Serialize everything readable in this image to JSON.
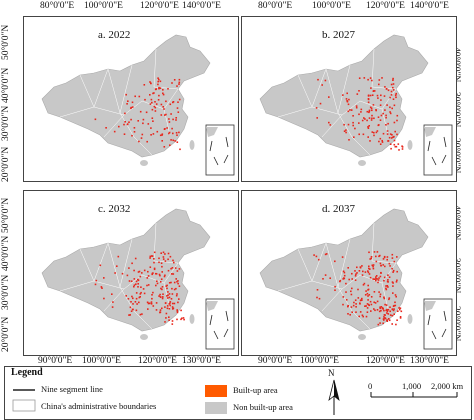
{
  "lon_top": [
    "80°0'0\"E",
    "100°0'0\"E",
    "120°0'0\"E",
    "140°0'0\"E"
  ],
  "lon_bottom_left": [
    "90°0'0\"E",
    "100°0'0\"E",
    "120°0'0\"E",
    "130°0'0\"E"
  ],
  "lon_bottom_right": [
    "90°0'0\"E",
    "100°0'0\"E",
    "120°0'0\"E",
    "130°0'0\"E"
  ],
  "lat_left_top": [
    "50°0'0\"N",
    "40°0'0\"N",
    "30°0'0\"N",
    "20°0'0\"N"
  ],
  "lat_left_bottom": [
    "50°0'0\"N",
    "40°0'0\"N",
    "30°0'0\"N",
    "20°0'0\"N"
  ],
  "lat_right_top": [
    "40°0'0\"N",
    "30°0'0\"N",
    "20°0'0\"N"
  ],
  "lat_right_bottom": [
    "40°0'0\"N",
    "30°0'0\"N",
    "20°0'0\"N"
  ],
  "panels": [
    {
      "label": "a. 2022"
    },
    {
      "label": "b. 2027"
    },
    {
      "label": "c. 2032"
    },
    {
      "label": "d. 2037"
    }
  ],
  "legend": {
    "title": "Legend",
    "nine_segment": "Nine segment line",
    "boundaries": "China's administrative boundaries",
    "built_up": "Built-up area",
    "non_built_up": "Non built-up area",
    "north": "N",
    "scale": [
      "0",
      "1,000",
      "2,000 km"
    ]
  },
  "colors": {
    "built_up": "#ff5a00",
    "built_up_points": "#e8261c",
    "land": "#c8c8c8",
    "boundary": "#ffffff"
  }
}
